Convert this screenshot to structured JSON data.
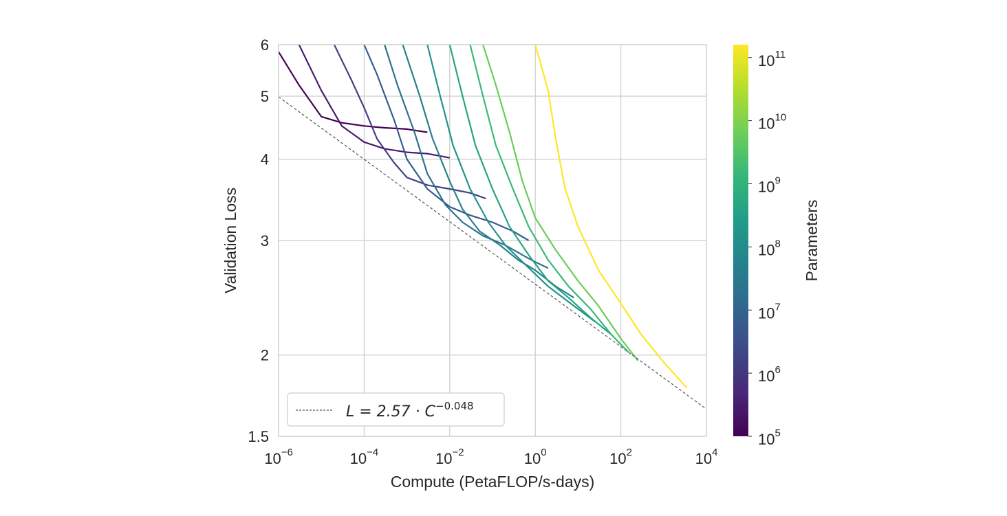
{
  "chart_data": {
    "type": "line",
    "xscale": "log",
    "yscale": "log",
    "xlabel": "Compute (PetaFLOP/s-days)",
    "ylabel": "Validation Loss",
    "xlim": [
      1e-06,
      10000
    ],
    "ylim": [
      1.5,
      6
    ],
    "x_ticks": [
      {
        "base": "10",
        "exp": "−6",
        "value": 1e-06
      },
      {
        "base": "10",
        "exp": "−4",
        "value": 0.0001
      },
      {
        "base": "10",
        "exp": "−2",
        "value": 0.01
      },
      {
        "base": "10",
        "exp": "0",
        "value": 1
      },
      {
        "base": "10",
        "exp": "2",
        "value": 100
      },
      {
        "base": "10",
        "exp": "4",
        "value": 10000
      }
    ],
    "y_ticks": [
      {
        "label": "1.5",
        "value": 1.5
      },
      {
        "label": "2",
        "value": 2
      },
      {
        "label": "3",
        "value": 3
      },
      {
        "label": "4",
        "value": 4
      },
      {
        "label": "5",
        "value": 5
      },
      {
        "label": "6",
        "value": 6
      }
    ],
    "grid": true,
    "legend": {
      "position": "lower-left",
      "entry": "L = 2.57 · C",
      "entry_exp": "−0.048"
    },
    "fit_line": {
      "a": 2.57,
      "b": -0.048,
      "color": "#555555",
      "style": "dashed"
    },
    "colorbar": {
      "label": "Parameters",
      "scale": "log",
      "range": [
        100000.0,
        160000000000.0
      ],
      "ticks": [
        {
          "base": "10",
          "exp": "5",
          "value": 100000.0
        },
        {
          "base": "10",
          "exp": "6",
          "value": 1000000.0
        },
        {
          "base": "10",
          "exp": "7",
          "value": 10000000.0
        },
        {
          "base": "10",
          "exp": "8",
          "value": 100000000.0
        },
        {
          "base": "10",
          "exp": "9",
          "value": 1000000000.0
        },
        {
          "base": "10",
          "exp": "10",
          "value": 10000000000.0
        },
        {
          "base": "10",
          "exp": "11",
          "value": 100000000000.0
        }
      ],
      "colormap": [
        "#440154",
        "#482878",
        "#3e4989",
        "#31688e",
        "#26828e",
        "#1f9e89",
        "#35b779",
        "#6ece58",
        "#b5de2b",
        "#fde725"
      ]
    },
    "series": [
      {
        "params": 100000.0,
        "x": [
          1e-06,
          3e-06,
          1e-05,
          3e-05,
          0.0001,
          0.0003,
          0.001,
          0.003
        ],
        "y": [
          5.85,
          5.2,
          4.65,
          4.55,
          4.5,
          4.47,
          4.45,
          4.4
        ]
      },
      {
        "params": 300000.0,
        "x": [
          3e-06,
          1e-05,
          3e-05,
          0.0001,
          0.0003,
          0.001,
          0.003,
          0.01
        ],
        "y": [
          6.0,
          5.1,
          4.5,
          4.25,
          4.15,
          4.1,
          4.08,
          4.02
        ]
      },
      {
        "params": 1500000.0,
        "x": [
          2e-05,
          5e-05,
          0.0001,
          0.0002,
          0.0005,
          0.001,
          0.003,
          0.01,
          0.03,
          0.07
        ],
        "y": [
          6.0,
          5.3,
          4.8,
          4.3,
          3.95,
          3.75,
          3.65,
          3.6,
          3.55,
          3.48
        ]
      },
      {
        "params": 6000000.0,
        "x": [
          0.0001,
          0.0002,
          0.0005,
          0.001,
          0.003,
          0.01,
          0.03,
          0.1,
          0.3,
          0.7
        ],
        "y": [
          6.0,
          5.4,
          4.6,
          4.0,
          3.6,
          3.38,
          3.28,
          3.2,
          3.1,
          3.0
        ]
      },
      {
        "params": 20000000.0,
        "x": [
          0.0003,
          0.0006,
          0.0015,
          0.003,
          0.008,
          0.02,
          0.06,
          0.2,
          0.5,
          1.0,
          2.0
        ],
        "y": [
          6.0,
          5.2,
          4.4,
          3.8,
          3.4,
          3.2,
          3.05,
          2.95,
          2.85,
          2.78,
          2.72
        ]
      },
      {
        "params": 50000000.0,
        "x": [
          0.0008,
          0.002,
          0.004,
          0.01,
          0.02,
          0.05,
          0.15,
          0.4,
          1.0,
          3.0,
          8.0
        ],
        "y": [
          6.0,
          5.0,
          4.3,
          3.7,
          3.35,
          3.1,
          2.95,
          2.8,
          2.7,
          2.55,
          2.45
        ]
      },
      {
        "params": 150000000.0,
        "x": [
          0.003,
          0.006,
          0.012,
          0.03,
          0.08,
          0.2,
          0.6,
          2.0,
          8.0,
          25.0
        ],
        "y": [
          6.0,
          5.0,
          4.2,
          3.6,
          3.2,
          2.95,
          2.75,
          2.55,
          2.38,
          2.25
        ]
      },
      {
        "params": 400000000.0,
        "x": [
          0.01,
          0.02,
          0.04,
          0.1,
          0.25,
          0.7,
          2.0,
          6.0,
          20.0,
          60.0
        ],
        "y": [
          6.0,
          5.0,
          4.2,
          3.6,
          3.15,
          2.85,
          2.6,
          2.45,
          2.28,
          2.15
        ]
      },
      {
        "params": 1500000000.0,
        "x": [
          0.03,
          0.06,
          0.12,
          0.3,
          0.7,
          2.0,
          6.0,
          20.0,
          60.0,
          150.0
        ],
        "y": [
          6.0,
          5.0,
          4.2,
          3.6,
          3.15,
          2.8,
          2.55,
          2.35,
          2.15,
          2.02
        ]
      },
      {
        "params": 6000000000.0,
        "x": [
          0.06,
          0.12,
          0.25,
          0.5,
          1.0,
          3.0,
          10.0,
          30.0,
          100.0,
          250.0
        ],
        "y": [
          6.0,
          5.2,
          4.4,
          3.7,
          3.25,
          2.9,
          2.6,
          2.38,
          2.12,
          1.96
        ]
      },
      {
        "params": 175000000000.0,
        "x": [
          1.0,
          2.0,
          3.0,
          5.0,
          10.0,
          30.0,
          100.0,
          300.0,
          1000.0,
          3500.0
        ],
        "y": [
          6.0,
          5.1,
          4.3,
          3.6,
          3.15,
          2.7,
          2.4,
          2.15,
          1.95,
          1.78
        ]
      }
    ]
  }
}
